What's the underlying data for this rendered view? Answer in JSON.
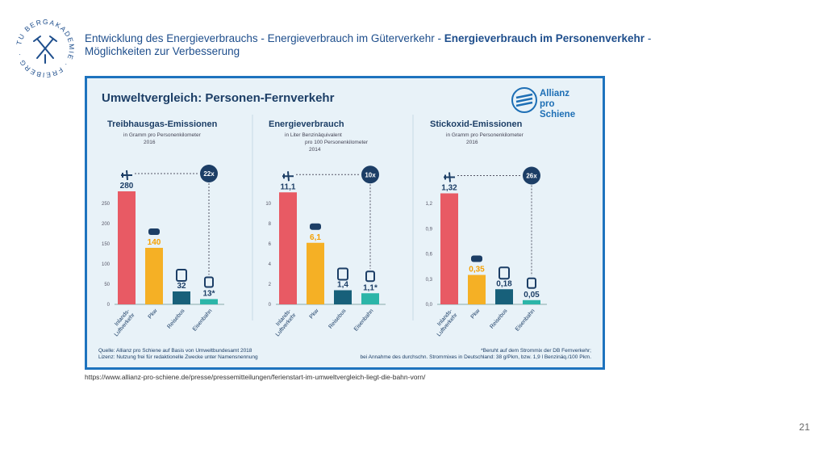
{
  "header": {
    "line1_prefix": "Entwicklung des Energieverbrauchs - Energieverbrauch im Güterverkehr - ",
    "line1_bold": "Energieverbrauch im Personenverkehr",
    "line1_suffix": " -",
    "line2": "Möglichkeiten zur Verbesserung"
  },
  "logo": {
    "ring_text": "TU BERGAKADEMIE · FREIBERG ·"
  },
  "panel": {
    "title": "Umweltvergleich: Personen-Fernverkehr",
    "brand_line1": "Allianz",
    "brand_line2": "pro Schiene",
    "source_line1": "Quelle: Allianz pro Schiene auf Basis von Umweltbundesamt 2018",
    "source_line2": "Lizenz: Nutzung frei für redaktionelle Zwecke unter Namensnennung",
    "note_line1": "*Beruht auf dem Strommix der DB Fernverkehr;",
    "note_line2": "bei Annahme des durchschn. Strommixes in Deutschland: 38 g/Pkm, bzw. 1,9 l Benzinäq./100 Pkm."
  },
  "url": "https://www.allianz-pro-schiene.de/presse/pressemitteilungen/ferienstart-im-umweltvergleich-liegt-die-bahn-vorn/",
  "page_number": "21",
  "colors": {
    "plane": "#e85a64",
    "car": "#f5b025",
    "bus": "#17607a",
    "train": "#2bb5a8",
    "panel_border": "#1e73be",
    "badge": "#1c3e66"
  },
  "chart_data": [
    {
      "type": "bar",
      "title": "Treibhausgas-Emissionen",
      "subtitle1": "in Gramm pro Personenkilometer",
      "subtitle2": "2016",
      "categories": [
        "Inlands-\nLuftverkehr",
        "Pkw",
        "Reisebus",
        "Eisenbahn"
      ],
      "category_icons": [
        "plane-icon",
        "car-icon",
        "bus-icon",
        "train-icon"
      ],
      "values": [
        280,
        140,
        32,
        13
      ],
      "value_labels": [
        "280",
        "140",
        "32",
        "13*"
      ],
      "ticks": [
        0,
        50,
        100,
        150,
        200,
        250
      ],
      "tick_labels": [
        "0",
        "50",
        "100",
        "150",
        "200",
        "250"
      ],
      "ylim": [
        0,
        300
      ],
      "factor": "22x"
    },
    {
      "type": "bar",
      "title": "Energieverbrauch",
      "subtitle1": "in Liter Benzinäquivalent",
      "subtitle2": "pro 100 Personenkilometer",
      "subtitle3": "2014",
      "categories": [
        "Inlands-\nLuftverkehr",
        "Pkw",
        "Reisebus",
        "Eisenbahn"
      ],
      "category_icons": [
        "plane-icon",
        "car-icon",
        "bus-icon",
        "train-icon"
      ],
      "values": [
        11.1,
        6.1,
        1.4,
        1.1
      ],
      "value_labels": [
        "11,1",
        "6,1",
        "1,4",
        "1,1*"
      ],
      "ticks": [
        0,
        2,
        4,
        6,
        8,
        10
      ],
      "tick_labels": [
        "0",
        "2",
        "4",
        "6",
        "8",
        "10"
      ],
      "ylim": [
        0,
        12
      ],
      "factor": "10x"
    },
    {
      "type": "bar",
      "title": "Stickoxid-Emissionen",
      "subtitle1": "in Gramm pro Personenkilometer",
      "subtitle2": "2016",
      "categories": [
        "Inlands-\nLuftverkehr",
        "Pkw",
        "Reisebus",
        "Eisenbahn"
      ],
      "category_icons": [
        "plane-icon",
        "car-icon",
        "bus-icon",
        "train-icon"
      ],
      "values": [
        1.32,
        0.35,
        0.18,
        0.05
      ],
      "value_labels": [
        "1,32",
        "0,35",
        "0,18",
        "0,05"
      ],
      "ticks": [
        0,
        0.3,
        0.6,
        0.9,
        1.2
      ],
      "tick_labels": [
        "0,0",
        "0,3",
        "0,6",
        "0,9",
        "1,2"
      ],
      "ylim": [
        0,
        1.44
      ],
      "factor": "26x"
    }
  ]
}
